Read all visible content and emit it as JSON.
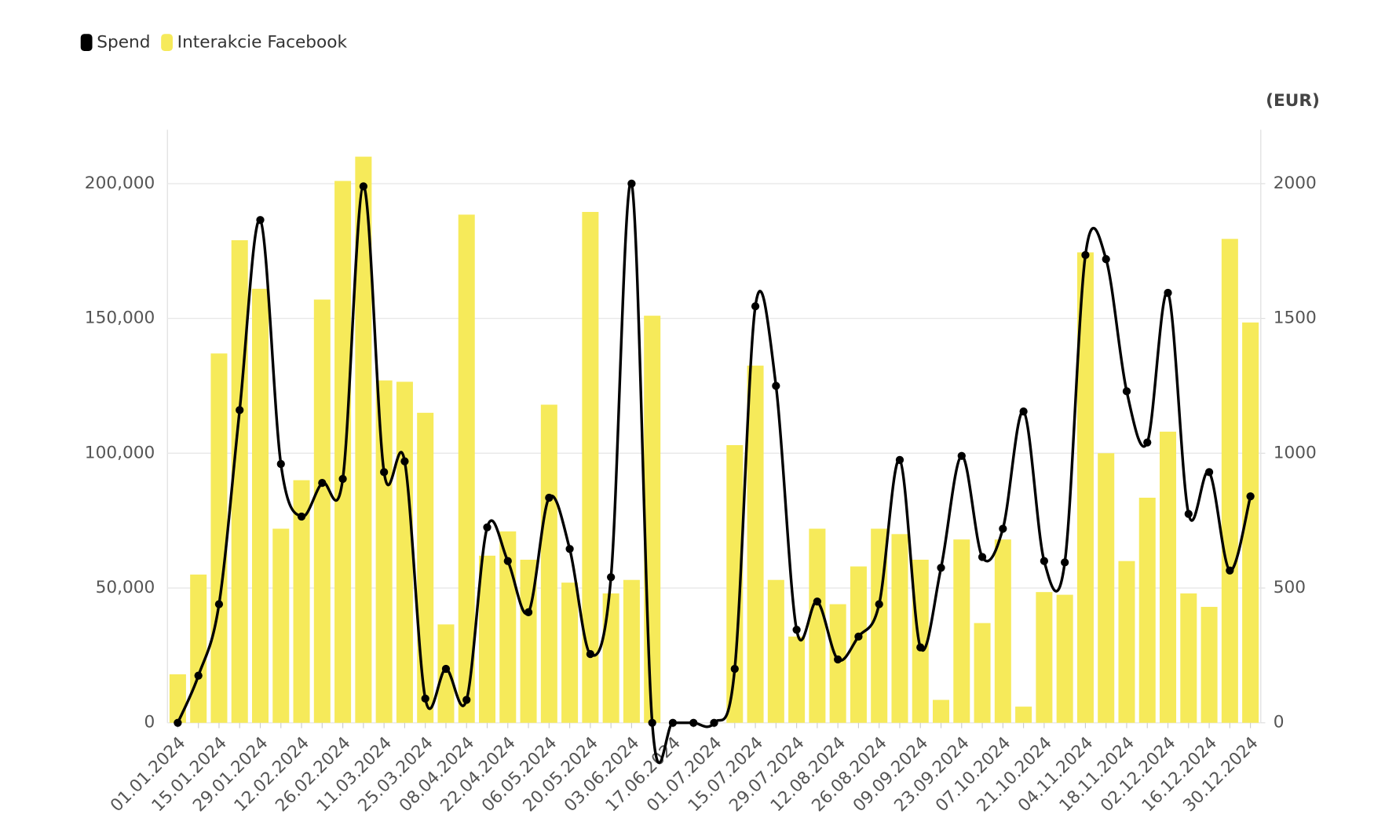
{
  "chart_data": {
    "type": "bar",
    "y2_label": "(EUR)",
    "categories": [
      "01.01.2024",
      null,
      "15.01.2024",
      null,
      "29.01.2024",
      null,
      "12.02.2024",
      null,
      "26.02.2024",
      null,
      "11.03.2024",
      null,
      "25.03.2024",
      null,
      "08.04.2024",
      null,
      "22.04.2024",
      null,
      "06.05.2024",
      null,
      "20.05.2024",
      null,
      "03.06.2024",
      null,
      "17.06.2024",
      null,
      "01.07.2024",
      null,
      "15.07.2024",
      null,
      "29.07.2024",
      null,
      "12.08.2024",
      null,
      "26.08.2024",
      null,
      "09.09.2024",
      null,
      "23.09.2024",
      null,
      "07.10.2024",
      null,
      "21.10.2024",
      null,
      "04.11.2024",
      null,
      "18.11.2024",
      null,
      "02.12.2024",
      null,
      "16.12.2024",
      null,
      "30.12.2024"
    ],
    "series": [
      {
        "name": "Spend",
        "color": "#000000",
        "type": "line",
        "axis": "y2",
        "values": [
          0,
          175,
          440,
          1160,
          1865,
          960,
          765,
          890,
          905,
          1990,
          930,
          970,
          90,
          200,
          85,
          725,
          600,
          410,
          835,
          645,
          255,
          540,
          2000,
          0,
          0,
          0,
          0,
          200,
          1545,
          1250,
          345,
          450,
          235,
          320,
          440,
          975,
          280,
          575,
          990,
          615,
          720,
          1155,
          600,
          595,
          1735,
          1720,
          1230,
          1040,
          1595,
          775,
          930,
          565,
          840
        ]
      },
      {
        "name": "Interakcie Facebook",
        "color": "#f6ea5a",
        "type": "bar",
        "values": [
          18000,
          55000,
          137000,
          179000,
          161000,
          72000,
          90000,
          157000,
          201000,
          210000,
          127000,
          126500,
          115000,
          36500,
          188500,
          62000,
          71000,
          60500,
          118000,
          52000,
          189500,
          48000,
          53000,
          151000,
          0,
          0,
          0,
          103000,
          132500,
          53000,
          32000,
          72000,
          44000,
          58000,
          72000,
          70000,
          60500,
          8500,
          68000,
          37000,
          68000,
          6000,
          48500,
          47500,
          174500,
          100000,
          60000,
          83500,
          108000,
          48000,
          43000,
          179500,
          148500
        ]
      }
    ],
    "ylim": [
      0,
      220000
    ],
    "yticks": [
      0,
      {
        "value": 50000,
        "label": "50,000"
      },
      {
        "value": 100000,
        "label": "100,000"
      },
      {
        "value": 150000,
        "label": "150,000"
      },
      {
        "value": 200000,
        "label": "200,000"
      }
    ],
    "y2lim": [
      0,
      2200
    ],
    "y2ticks": [
      0,
      500,
      1000,
      1500,
      2000
    ],
    "grid": true,
    "legend": "top-left"
  }
}
